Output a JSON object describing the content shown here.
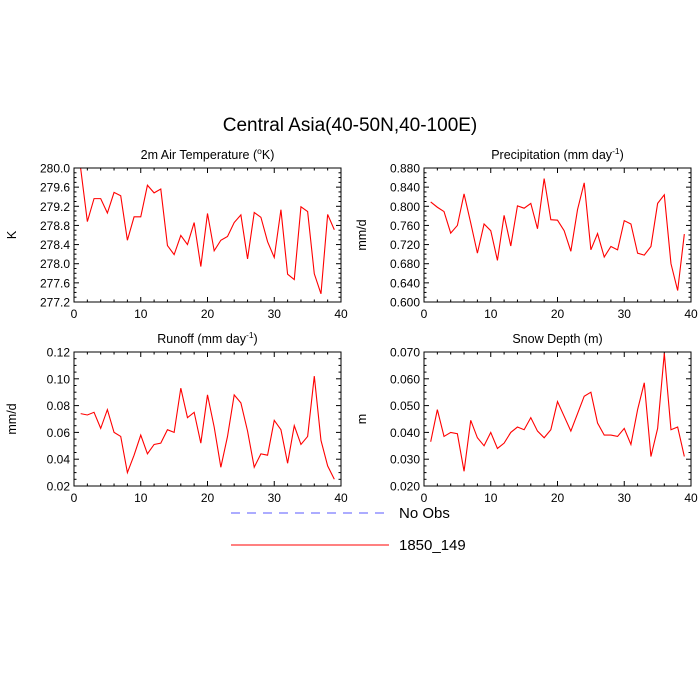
{
  "figure": {
    "title": "Central Asia(40-50N,40-100E)"
  },
  "legend": {
    "items": [
      {
        "label": "No Obs",
        "color": "#5a5aff",
        "dash": true
      },
      {
        "label": "1850_149",
        "color": "#ff0000",
        "dash": false
      }
    ]
  },
  "chart_data": [
    {
      "type": "line",
      "title": "2m Air Temperature (°K)",
      "title_main": "2m Air Temperature (",
      "title_sup": "o",
      "title_tail": "K)",
      "xlabel": "",
      "ylabel": "K",
      "xlim": [
        0,
        40
      ],
      "ylim": [
        277.2,
        280.0
      ],
      "xticks": [
        0,
        10,
        20,
        30,
        40
      ],
      "yticks": [
        "277.2",
        "277.6",
        "278.0",
        "278.4",
        "278.8",
        "279.2",
        "279.6",
        "280.0"
      ],
      "grid": false,
      "series": [
        {
          "name": "1850_149",
          "color": "#ff0000",
          "x": [
            1,
            2,
            3,
            4,
            5,
            6,
            7,
            8,
            9,
            10,
            11,
            12,
            13,
            14,
            15,
            16,
            17,
            18,
            19,
            20,
            21,
            22,
            23,
            24,
            25,
            26,
            27,
            28,
            29,
            30,
            31,
            32,
            33,
            34,
            35,
            36,
            37,
            38,
            39
          ],
          "y": [
            279.99,
            278.88,
            279.36,
            279.36,
            279.06,
            279.49,
            279.42,
            278.49,
            278.98,
            278.98,
            279.64,
            279.48,
            279.56,
            278.38,
            278.19,
            278.59,
            278.4,
            278.86,
            277.94,
            279.05,
            278.27,
            278.49,
            278.57,
            278.86,
            279.02,
            278.1,
            279.07,
            278.97,
            278.46,
            278.13,
            279.13,
            277.78,
            277.67,
            279.19,
            279.09,
            277.79,
            277.37,
            279.03,
            278.71
          ]
        }
      ]
    },
    {
      "type": "line",
      "title": "Precipitation (mm day-1)",
      "title_main": "Precipitation (mm day",
      "title_sup": "-1",
      "title_tail": ")",
      "xlabel": "",
      "ylabel": "mm/d",
      "xlim": [
        0,
        40
      ],
      "ylim": [
        0.6,
        0.88
      ],
      "xticks": [
        0,
        10,
        20,
        30,
        40
      ],
      "yticks": [
        "0.600",
        "0.640",
        "0.680",
        "0.720",
        "0.760",
        "0.800",
        "0.840",
        "0.880"
      ],
      "grid": false,
      "series": [
        {
          "name": "1850_149",
          "color": "#ff0000",
          "x": [
            1,
            2,
            3,
            4,
            5,
            6,
            7,
            8,
            9,
            10,
            11,
            12,
            13,
            14,
            15,
            16,
            17,
            18,
            19,
            20,
            21,
            22,
            23,
            24,
            25,
            26,
            27,
            28,
            29,
            30,
            31,
            32,
            33,
            34,
            35,
            36,
            37,
            38,
            39
          ],
          "y": [
            0.809,
            0.798,
            0.789,
            0.744,
            0.76,
            0.826,
            0.765,
            0.702,
            0.763,
            0.749,
            0.687,
            0.781,
            0.717,
            0.801,
            0.796,
            0.806,
            0.753,
            0.858,
            0.772,
            0.771,
            0.749,
            0.706,
            0.793,
            0.849,
            0.709,
            0.743,
            0.694,
            0.716,
            0.709,
            0.77,
            0.763,
            0.702,
            0.698,
            0.716,
            0.806,
            0.824,
            0.68,
            0.624,
            0.742
          ]
        }
      ]
    },
    {
      "type": "line",
      "title": "Runoff (mm day-1)",
      "title_main": "Runoff (mm day",
      "title_sup": "-1",
      "title_tail": ")",
      "xlabel": "",
      "ylabel": "mm/d",
      "xlim": [
        0,
        40
      ],
      "ylim": [
        0.02,
        0.12
      ],
      "xticks": [
        0,
        10,
        20,
        30,
        40
      ],
      "yticks": [
        "0.02",
        "0.04",
        "0.06",
        "0.08",
        "0.10",
        "0.12"
      ],
      "grid": false,
      "series": [
        {
          "name": "1850_149",
          "color": "#ff0000",
          "x": [
            1,
            2,
            3,
            4,
            5,
            6,
            7,
            8,
            9,
            10,
            11,
            12,
            13,
            14,
            15,
            16,
            17,
            18,
            19,
            20,
            21,
            22,
            23,
            24,
            25,
            26,
            27,
            28,
            29,
            30,
            31,
            32,
            33,
            34,
            35,
            36,
            37,
            38,
            39
          ],
          "y": [
            0.074,
            0.073,
            0.075,
            0.063,
            0.077,
            0.06,
            0.057,
            0.03,
            0.043,
            0.058,
            0.044,
            0.051,
            0.052,
            0.062,
            0.06,
            0.093,
            0.071,
            0.075,
            0.052,
            0.088,
            0.064,
            0.034,
            0.057,
            0.088,
            0.082,
            0.061,
            0.034,
            0.044,
            0.043,
            0.069,
            0.062,
            0.037,
            0.065,
            0.051,
            0.057,
            0.102,
            0.054,
            0.035,
            0.025
          ]
        }
      ]
    },
    {
      "type": "line",
      "title": "Snow Depth (m)",
      "title_main": "Snow Depth (m)",
      "title_sup": "",
      "title_tail": "",
      "xlabel": "",
      "ylabel": "m",
      "xlim": [
        0,
        40
      ],
      "ylim": [
        0.02,
        0.07
      ],
      "xticks": [
        0,
        10,
        20,
        30,
        40
      ],
      "yticks": [
        "0.020",
        "0.030",
        "0.040",
        "0.050",
        "0.060",
        "0.070"
      ],
      "grid": false,
      "series": [
        {
          "name": "1850_149",
          "color": "#ff0000",
          "x": [
            1,
            2,
            3,
            4,
            5,
            6,
            7,
            8,
            9,
            10,
            11,
            12,
            13,
            14,
            15,
            16,
            17,
            18,
            19,
            20,
            21,
            22,
            23,
            24,
            25,
            26,
            27,
            28,
            29,
            30,
            31,
            32,
            33,
            34,
            35,
            36,
            37,
            38,
            39
          ],
          "y": [
            0.0365,
            0.0485,
            0.0385,
            0.04,
            0.0395,
            0.0255,
            0.0445,
            0.038,
            0.035,
            0.04,
            0.034,
            0.036,
            0.04,
            0.042,
            0.041,
            0.0455,
            0.0405,
            0.038,
            0.041,
            0.0515,
            0.046,
            0.0405,
            0.047,
            0.0535,
            0.055,
            0.0435,
            0.039,
            0.039,
            0.0385,
            0.0415,
            0.0355,
            0.0485,
            0.0585,
            0.031,
            0.0415,
            0.0695,
            0.041,
            0.042,
            0.031
          ]
        }
      ]
    }
  ]
}
